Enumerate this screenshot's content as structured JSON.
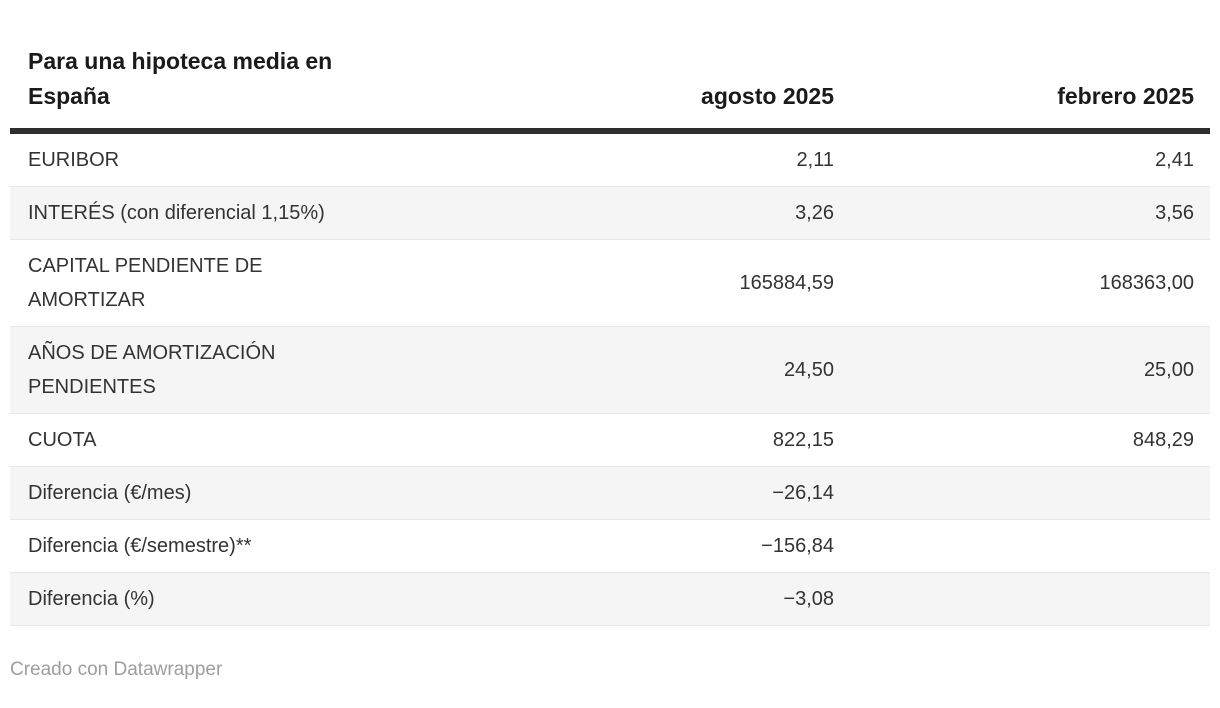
{
  "colors": {
    "header_rule": "#2e2e2e",
    "stripe": "#f5f5f5",
    "row_separator": "#e8e8e8",
    "heading_text": "#1a1a1a",
    "body_text": "#333333",
    "footer_text": "#9e9e9e"
  },
  "table": {
    "title": "Para una hipoteca media en España",
    "col_headers": {
      "agosto": "agosto 2025",
      "febrero": "febrero 2025"
    },
    "rows": [
      {
        "label": "EURIBOR",
        "agosto": "2,11",
        "febrero": "2,41"
      },
      {
        "label": "INTERÉS (con diferencial 1,15%)",
        "agosto": "3,26",
        "febrero": "3,56"
      },
      {
        "label": "CAPITAL PENDIENTE DE AMORTIZAR",
        "agosto": "165884,59",
        "febrero": "168363,00"
      },
      {
        "label": "AÑOS DE AMORTIZACIÓN PENDIENTES",
        "agosto": "24,50",
        "febrero": "25,00"
      },
      {
        "label": "CUOTA",
        "agosto": "822,15",
        "febrero": "848,29"
      },
      {
        "label": "Diferencia (€/mes)",
        "agosto": "−26,14",
        "febrero": ""
      },
      {
        "label": "Diferencia (€/semestre)**",
        "agosto": "−156,84",
        "febrero": ""
      },
      {
        "label": "Diferencia (%)",
        "agosto": "−3,08",
        "febrero": ""
      }
    ]
  },
  "footer": {
    "attribution": "Creado con Datawrapper"
  },
  "chart_data": {
    "type": "table",
    "title": "Para una hipoteca media en España",
    "columns": [
      "",
      "agosto 2025",
      "febrero 2025"
    ],
    "rows": [
      [
        "EURIBOR",
        2.11,
        2.41
      ],
      [
        "INTERÉS (con diferencial 1,15%)",
        3.26,
        3.56
      ],
      [
        "CAPITAL PENDIENTE DE AMORTIZAR",
        165884.59,
        168363.0
      ],
      [
        "AÑOS DE AMORTIZACIÓN PENDIENTES",
        24.5,
        25.0
      ],
      [
        "CUOTA",
        822.15,
        848.29
      ],
      [
        "Diferencia (€/mes)",
        -26.14,
        null
      ],
      [
        "Diferencia (€/semestre)**",
        -156.84,
        null
      ],
      [
        "Diferencia (%)",
        -3.08,
        null
      ]
    ],
    "notes": "Decimal comma formatting (es-ES); empty cells in febrero column for the three Diferencia rows",
    "footnote": "Creado con Datawrapper"
  }
}
